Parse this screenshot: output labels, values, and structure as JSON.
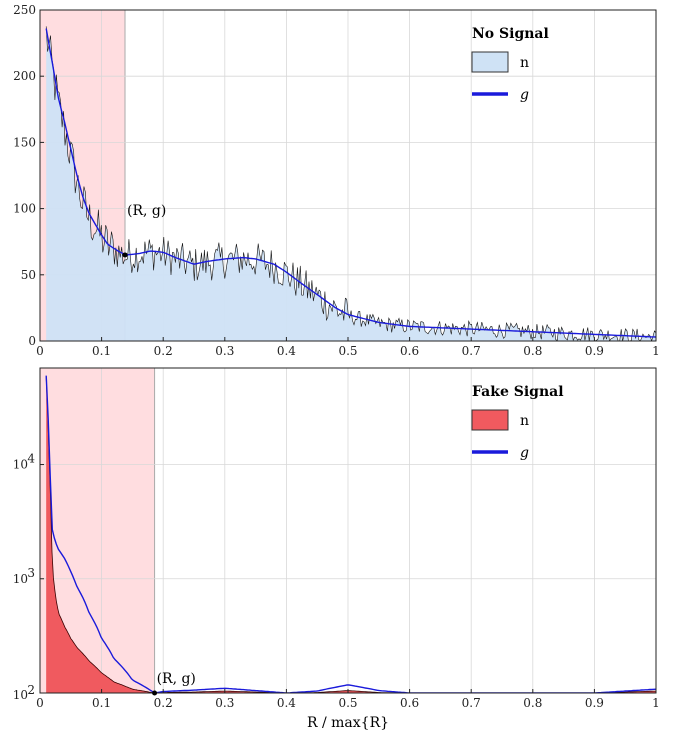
{
  "chart_data": [
    {
      "type": "area",
      "title": "",
      "xlim": [
        0,
        1
      ],
      "ylim": [
        0,
        250
      ],
      "yscale": "linear",
      "grid": true,
      "legend_placement": "top-right",
      "x_ticks": [
        "0",
        "0.1",
        "0.2",
        "0.3",
        "0.4",
        "0.5",
        "0.6",
        "0.7",
        "0.8",
        "0.9",
        "1"
      ],
      "y_ticks": [
        "0",
        "50",
        "100",
        "150",
        "200",
        "250"
      ],
      "legend": {
        "title": "No Signal",
        "items": [
          "n",
          "g"
        ]
      },
      "annotation": {
        "text": "(R, g)",
        "x": 0.138,
        "y": 65
      },
      "threshold": 0.138,
      "colors": {
        "hist": "#cfe2f5",
        "curve": "#1a1adb",
        "shade": "#ffdde0"
      },
      "series": [
        {
          "name": "g",
          "x": [
            0.01,
            0.02,
            0.03,
            0.04,
            0.05,
            0.06,
            0.07,
            0.08,
            0.09,
            0.1,
            0.11,
            0.12,
            0.13,
            0.14,
            0.16,
            0.18,
            0.2,
            0.22,
            0.25,
            0.27,
            0.3,
            0.33,
            0.35,
            0.38,
            0.4,
            0.42,
            0.45,
            0.48,
            0.5,
            0.55,
            0.6,
            0.65,
            0.7,
            0.75,
            0.8,
            0.85,
            0.9,
            0.95,
            1.0
          ],
          "values": [
            236,
            210,
            183,
            165,
            145,
            125,
            108,
            96,
            88,
            80,
            73,
            70,
            67,
            65,
            66,
            68,
            67,
            63,
            58,
            60,
            62,
            63,
            62,
            58,
            52,
            45,
            35,
            25,
            20,
            14,
            11,
            10,
            9,
            8,
            7,
            6,
            5,
            4,
            3
          ]
        },
        {
          "name": "n",
          "x": [
            0.01,
            0.02,
            0.03,
            0.04,
            0.05,
            0.06,
            0.07,
            0.08,
            0.09,
            0.1,
            0.11,
            0.12,
            0.13,
            0.14,
            0.16,
            0.18,
            0.2,
            0.22,
            0.25,
            0.27,
            0.3,
            0.33,
            0.35,
            0.38,
            0.4,
            0.42,
            0.45,
            0.48,
            0.5,
            0.55,
            0.6,
            0.65,
            0.7,
            0.75,
            0.8,
            0.85,
            0.9,
            0.95,
            1.0
          ],
          "values": [
            232,
            205,
            178,
            160,
            140,
            120,
            103,
            92,
            86,
            78,
            72,
            69,
            66,
            64,
            66,
            67,
            66,
            62,
            57,
            59,
            61,
            62,
            61,
            57,
            51,
            44,
            34,
            24,
            19,
            13,
            11,
            10,
            9,
            8,
            7,
            6,
            5,
            4,
            3
          ]
        }
      ]
    },
    {
      "type": "area",
      "title": "",
      "xlim": [
        0,
        1
      ],
      "ylim": [
        100,
        70000
      ],
      "yscale": "log",
      "grid": true,
      "legend_placement": "top-right",
      "x_ticks": [
        "0",
        "0.1",
        "0.2",
        "0.3",
        "0.4",
        "0.5",
        "0.6",
        "0.7",
        "0.8",
        "0.9",
        "1"
      ],
      "y_ticks": [
        "10",
        "10",
        "10"
      ],
      "y_tick_exponents": [
        "2",
        "3",
        "4"
      ],
      "legend": {
        "title": "Fake Signal",
        "items": [
          "n",
          "g"
        ]
      },
      "annotation": {
        "text": "(R, g)",
        "x": 0.186,
        "y": 100
      },
      "threshold": 0.186,
      "xlabel": "R / max{R}",
      "colors": {
        "hist": "#f05a5f",
        "curve": "#1a1adb",
        "shade": "#ffdde0"
      },
      "series": [
        {
          "name": "g",
          "x": [
            0.01,
            0.012,
            0.015,
            0.018,
            0.02,
            0.025,
            0.03,
            0.04,
            0.05,
            0.06,
            0.08,
            0.1,
            0.12,
            0.15,
            0.186,
            0.2,
            0.25,
            0.3,
            0.35,
            0.4,
            0.45,
            0.5,
            0.55,
            0.6,
            0.7,
            0.8,
            0.9,
            1.0
          ],
          "values": [
            60000,
            35000,
            12000,
            4500,
            2600,
            2100,
            1800,
            1500,
            1150,
            850,
            500,
            300,
            200,
            130,
            100,
            103,
            106,
            110,
            105,
            100,
            104,
            118,
            105,
            100,
            100,
            100,
            100,
            108
          ]
        },
        {
          "name": "n",
          "x": [
            0.01,
            0.012,
            0.015,
            0.018,
            0.02,
            0.025,
            0.03,
            0.04,
            0.05,
            0.06,
            0.08,
            0.1,
            0.12,
            0.15,
            0.186,
            0.2,
            0.25,
            0.3,
            0.35,
            0.4,
            0.45,
            0.5,
            0.55,
            0.6,
            0.7,
            0.8,
            0.9,
            1.0
          ],
          "values": [
            58000,
            33000,
            10000,
            3000,
            1200,
            700,
            500,
            380,
            300,
            250,
            190,
            150,
            125,
            108,
            100,
            101,
            102,
            104,
            102,
            100,
            101,
            105,
            101,
            100,
            100,
            100,
            100,
            104
          ]
        }
      ]
    }
  ]
}
